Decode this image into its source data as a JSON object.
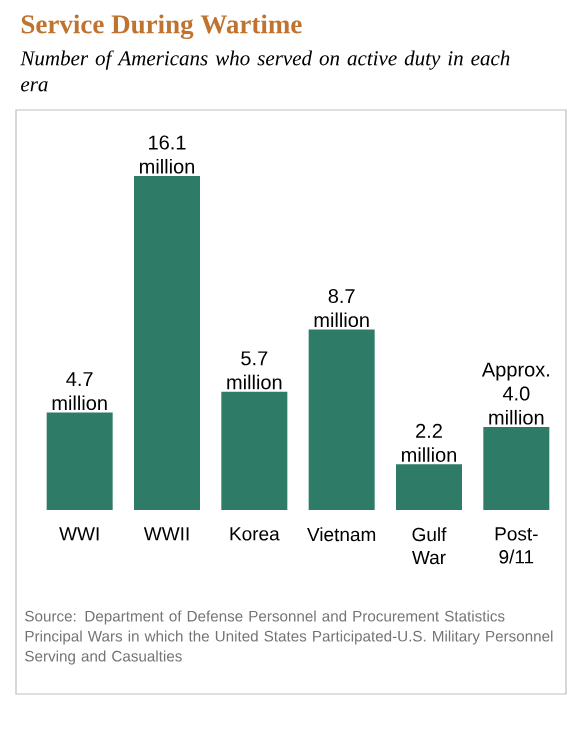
{
  "chart_data": {
    "type": "bar",
    "title": "Service During Wartime",
    "subtitle": "Number of Americans who served on active duty in each era",
    "categories": [
      "WWI",
      "WWII",
      "Korea",
      "Vietnam",
      "Gulf War",
      "Post-9/11"
    ],
    "values": [
      4.7,
      16.1,
      5.7,
      8.7,
      2.2,
      4.0
    ],
    "value_labels": [
      "4.7 million",
      "16.1 million",
      "5.7 million",
      "8.7 million",
      "2.2 million",
      "Approx. 4.0 million"
    ],
    "color": "#2e7b68",
    "annotations": [
      "Source: Department of Defense Personnel and Procurement Statistics Principal Wars in which the United States Participated-U.S. Military Personnel Serving and Casualties"
    ]
  }
}
